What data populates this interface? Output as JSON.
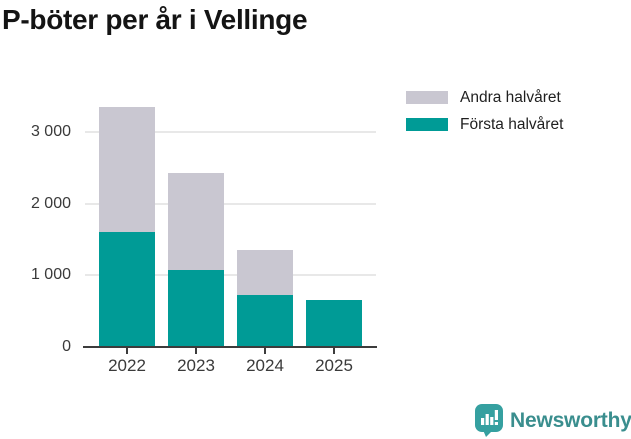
{
  "title": "P-böter per år i Vellinge",
  "legend": {
    "items": [
      {
        "label": "Andra halvåret",
        "color": "#c9c7d1"
      },
      {
        "label": "Första halvåret",
        "color": "#009b96"
      }
    ]
  },
  "brand": {
    "name": "Newsworthy",
    "icon": "newsworthy-speech-bubble-bar-chart-icon",
    "icon_color": "#35a0a0",
    "text_color": "#3a8e8e"
  },
  "chart_data": {
    "type": "bar",
    "stacked": true,
    "title": "P-böter per år i Vellinge",
    "categories": [
      "2022",
      "2023",
      "2024",
      "2025"
    ],
    "series": [
      {
        "name": "Första halvåret",
        "color": "#009b96",
        "values": [
          1600,
          1075,
          720,
          650
        ]
      },
      {
        "name": "Andra halvåret",
        "color": "#c9c7d1",
        "values": [
          1750,
          1355,
          640,
          0
        ]
      }
    ],
    "xlabel": "",
    "ylabel": "",
    "ylim": [
      0,
      3500
    ],
    "yticks": [
      0,
      1000,
      2000,
      3000
    ],
    "ytick_labels": [
      "0",
      "1 000",
      "2 000",
      "3 000"
    ],
    "grid": true,
    "legend_position": "top-right",
    "axis_color": "#3c3c3c",
    "gridline_color": "#e8e8e8"
  }
}
